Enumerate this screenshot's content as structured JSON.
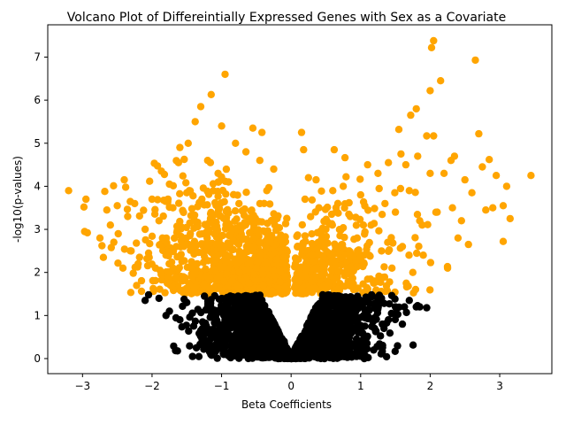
{
  "chart_data": {
    "type": "scatter",
    "title": "Volcano Plot of Differeintially Expressed Genes with Sex as a Covariate",
    "xlabel": "Beta Coefficients",
    "ylabel": "-log10(p-values)",
    "xlim": [
      -3.5,
      3.75
    ],
    "ylim": [
      -0.35,
      7.75
    ],
    "xticks": [
      -3,
      -2,
      -1,
      0,
      1,
      2,
      3
    ],
    "xtick_labels": [
      "−3",
      "−2",
      "−1",
      "0",
      "1",
      "2",
      "3"
    ],
    "yticks": [
      0,
      1,
      2,
      3,
      4,
      5,
      6,
      7
    ],
    "ytick_labels": [
      "0",
      "1",
      "2",
      "3",
      "4",
      "5",
      "6",
      "7"
    ],
    "grid": false,
    "colors": {
      "significant": "#ffa500",
      "not_significant": "#000000"
    },
    "significance_threshold_y": 1.5,
    "series": [
      {
        "color": "#ffa500",
        "points": [
          [
            -3.2,
            3.9
          ],
          [
            -2.95,
            3.7
          ],
          [
            -2.98,
            3.52
          ],
          [
            -2.97,
            2.95
          ],
          [
            -2.93,
            2.92
          ],
          [
            -2.75,
            2.8
          ],
          [
            -2.7,
            2.35
          ],
          [
            -2.72,
            2.62
          ],
          [
            -2.68,
            3.88
          ],
          [
            -2.65,
            3.45
          ],
          [
            -2.6,
            3.1
          ],
          [
            -2.55,
            2.7
          ],
          [
            -2.5,
            3.55
          ],
          [
            -2.4,
            4.15
          ],
          [
            -2.38,
            3.98
          ],
          [
            -2.35,
            3.3
          ],
          [
            -2.3,
            2.5
          ],
          [
            -2.25,
            3.6
          ],
          [
            -2.2,
            2.2
          ],
          [
            -2.1,
            3.0
          ],
          [
            -2.05,
            2.45
          ],
          [
            -2.0,
            3.7
          ],
          [
            -1.95,
            2.1
          ],
          [
            -1.9,
            3.2
          ],
          [
            -1.85,
            2.8
          ],
          [
            -1.8,
            2.4
          ],
          [
            -1.78,
            1.75
          ],
          [
            -1.75,
            4.05
          ],
          [
            -1.7,
            3.5
          ],
          [
            -1.65,
            2.6
          ],
          [
            -1.62,
            4.55
          ],
          [
            -1.6,
            4.9
          ],
          [
            -1.55,
            1.9
          ],
          [
            -1.5,
            3.85
          ],
          [
            -1.48,
            5.0
          ],
          [
            -1.45,
            2.9
          ],
          [
            -1.4,
            3.3
          ],
          [
            -1.38,
            5.5
          ],
          [
            -1.35,
            2.2
          ],
          [
            -1.3,
            5.85
          ],
          [
            -1.25,
            1.7
          ],
          [
            -1.2,
            4.6
          ],
          [
            -1.15,
            6.13
          ],
          [
            -1.1,
            3.05
          ],
          [
            -1.05,
            4.3
          ],
          [
            -1.0,
            5.4
          ],
          [
            -0.98,
            2.5
          ],
          [
            -0.95,
            6.6
          ],
          [
            -0.9,
            4.1
          ],
          [
            -0.85,
            1.8
          ],
          [
            -0.8,
            5.0
          ],
          [
            -0.75,
            3.6
          ],
          [
            -0.7,
            2.4
          ],
          [
            -0.65,
            4.8
          ],
          [
            -0.6,
            3.2
          ],
          [
            -0.55,
            5.35
          ],
          [
            -0.5,
            2.1
          ],
          [
            -0.45,
            4.6
          ],
          [
            -0.42,
            5.25
          ],
          [
            -0.4,
            1.7
          ],
          [
            -0.35,
            3.9
          ],
          [
            -0.3,
            2.7
          ],
          [
            -0.25,
            4.4
          ],
          [
            -0.2,
            3.25
          ],
          [
            -0.15,
            2.0
          ],
          [
            -0.1,
            2.35
          ],
          [
            -0.05,
            1.6
          ],
          [
            0.05,
            1.65
          ],
          [
            0.1,
            2.6
          ],
          [
            0.15,
            5.25
          ],
          [
            0.18,
            4.85
          ],
          [
            0.2,
            3.7
          ],
          [
            0.25,
            4.2
          ],
          [
            0.3,
            2.4
          ],
          [
            0.35,
            1.9
          ],
          [
            0.4,
            3.5
          ],
          [
            0.45,
            2.2
          ],
          [
            0.5,
            3.0
          ],
          [
            0.55,
            1.75
          ],
          [
            0.6,
            3.9
          ],
          [
            0.62,
            4.85
          ],
          [
            0.7,
            2.6
          ],
          [
            0.75,
            4.0
          ],
          [
            0.8,
            2.0
          ],
          [
            0.85,
            3.3
          ],
          [
            0.9,
            1.6
          ],
          [
            0.95,
            2.8
          ],
          [
            1.0,
            3.8
          ],
          [
            1.05,
            2.2
          ],
          [
            1.1,
            4.5
          ],
          [
            1.15,
            3.1
          ],
          [
            1.2,
            1.8
          ],
          [
            1.25,
            4.3
          ],
          [
            1.3,
            2.5
          ],
          [
            1.35,
            3.6
          ],
          [
            1.4,
            4.55
          ],
          [
            1.45,
            2.1
          ],
          [
            1.5,
            3.4
          ],
          [
            1.55,
            5.32
          ],
          [
            1.58,
            4.75
          ],
          [
            1.6,
            2.6
          ],
          [
            1.65,
            4.5
          ],
          [
            1.7,
            3.9
          ],
          [
            1.72,
            5.65
          ],
          [
            1.75,
            2.0
          ],
          [
            1.8,
            5.8
          ],
          [
            1.82,
            4.7
          ],
          [
            1.85,
            3.2
          ],
          [
            1.9,
            2.4
          ],
          [
            1.95,
            5.17
          ],
          [
            2.0,
            4.3
          ],
          [
            2.02,
            7.22
          ],
          [
            2.05,
            7.38
          ],
          [
            2.0,
            6.22
          ],
          [
            2.05,
            5.17
          ],
          [
            2.1,
            3.4
          ],
          [
            2.15,
            6.45
          ],
          [
            2.2,
            4.3
          ],
          [
            2.25,
            2.1
          ],
          [
            2.3,
            4.6
          ],
          [
            2.32,
            3.5
          ],
          [
            2.35,
            4.7
          ],
          [
            2.4,
            2.8
          ],
          [
            2.45,
            3.2
          ],
          [
            2.5,
            4.15
          ],
          [
            2.55,
            2.65
          ],
          [
            2.6,
            3.85
          ],
          [
            2.65,
            6.93
          ],
          [
            2.7,
            5.22
          ],
          [
            2.75,
            4.45
          ],
          [
            2.8,
            3.45
          ],
          [
            2.85,
            4.62
          ],
          [
            2.9,
            3.5
          ],
          [
            2.95,
            4.25
          ],
          [
            3.05,
            2.72
          ],
          [
            3.05,
            3.55
          ],
          [
            3.1,
            4.0
          ],
          [
            3.15,
            3.25
          ],
          [
            3.45,
            4.25
          ]
        ]
      },
      {
        "color": "#000000",
        "points": [
          [
            -2.1,
            1.35
          ],
          [
            -2.05,
            1.48
          ],
          [
            -1.9,
            1.4
          ],
          [
            -1.8,
            1.0
          ],
          [
            -1.75,
            1.1
          ],
          [
            -1.6,
            0.9
          ],
          [
            -1.5,
            1.3
          ],
          [
            -1.3,
            0.65
          ],
          [
            -1.2,
            1.2
          ],
          [
            -1.0,
            0.5
          ],
          [
            -0.9,
            1.4
          ],
          [
            -0.8,
            0.4
          ],
          [
            -0.7,
            0.9
          ],
          [
            -0.6,
            0.3
          ],
          [
            -0.5,
            1.2
          ],
          [
            -0.4,
            0.2
          ],
          [
            -0.3,
            0.7
          ],
          [
            -0.2,
            0.1
          ],
          [
            -0.1,
            0.4
          ],
          [
            0.0,
            0.0
          ],
          [
            0.1,
            0.35
          ],
          [
            0.2,
            0.15
          ],
          [
            0.3,
            0.8
          ],
          [
            0.4,
            0.25
          ],
          [
            0.5,
            1.1
          ],
          [
            0.6,
            0.4
          ],
          [
            0.7,
            0.9
          ],
          [
            0.8,
            0.5
          ],
          [
            0.9,
            1.3
          ],
          [
            1.0,
            0.6
          ],
          [
            1.1,
            1.0
          ],
          [
            1.2,
            0.7
          ],
          [
            1.3,
            1.4
          ],
          [
            1.4,
            0.9
          ],
          [
            1.5,
            1.2
          ],
          [
            1.6,
            0.8
          ],
          [
            1.63,
            1.2
          ],
          [
            1.7,
            1.35
          ],
          [
            1.8,
            1.2
          ],
          [
            1.85,
            1.2
          ],
          [
            1.95,
            1.18
          ]
        ]
      }
    ]
  }
}
